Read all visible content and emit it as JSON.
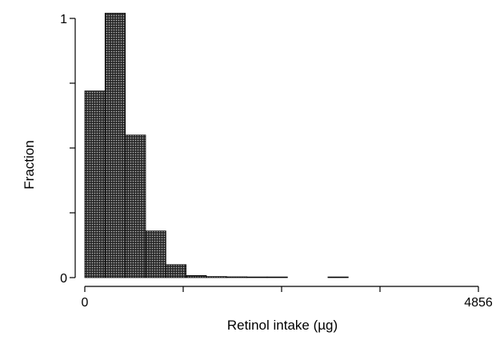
{
  "chart_data": {
    "type": "bar",
    "xlabel": "Retinol intake (µg)",
    "ylabel": "Fraction",
    "xlim": [
      0,
      4856
    ],
    "ylim": [
      0,
      1
    ],
    "x_tick_values": [
      0,
      1214,
      2428,
      3642,
      4856
    ],
    "x_tick_labels": [
      "0",
      "",
      "",
      "",
      "4856"
    ],
    "y_tick_values": [
      0,
      0.25,
      0.5,
      0.75,
      1
    ],
    "y_tick_labels": [
      "0",
      "",
      "",
      "",
      "1"
    ],
    "bin_width": 250,
    "bin_starts": [
      0,
      250,
      500,
      750,
      1000,
      1250,
      1500,
      1750,
      2000,
      2250,
      2500,
      2750,
      3000,
      3250
    ],
    "values": [
      0.72,
      1.02,
      0.55,
      0.18,
      0.05,
      0.008,
      0.004,
      0.003,
      0.002,
      0.002,
      0.0,
      0.0,
      0.0025,
      0.0
    ],
    "bar_fill_color": "#2a2a2a",
    "bar_dot_color": "#bdbdbd",
    "grid": false,
    "legend": "none"
  }
}
